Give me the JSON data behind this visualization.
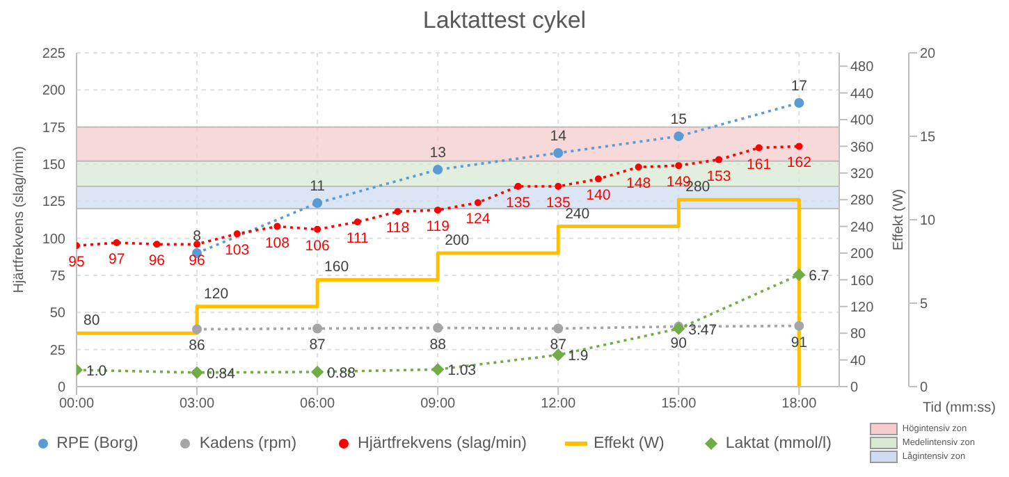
{
  "chart_data": {
    "type": "line",
    "title": "Laktattest cykel",
    "ylabel": "Hjärtfrekvens (slag/min)",
    "y2label": "Effekt (W)",
    "xlabel": "Tid (mm:ss)",
    "xlim": [
      0,
      19
    ],
    "xticks": [
      {
        "value": 0,
        "label": "00:00"
      },
      {
        "value": 3,
        "label": "03:00"
      },
      {
        "value": 6,
        "label": "06:00"
      },
      {
        "value": 9,
        "label": "09:00"
      },
      {
        "value": 12,
        "label": "12:00"
      },
      {
        "value": 15,
        "label": "15:00"
      },
      {
        "value": 18,
        "label": "18:00"
      }
    ],
    "ylim": [
      0,
      225
    ],
    "yticks": [
      0,
      25,
      50,
      75,
      100,
      125,
      150,
      175,
      200,
      225
    ],
    "y2lim": [
      0,
      500
    ],
    "y2ticks": [
      0,
      40,
      80,
      120,
      160,
      200,
      240,
      280,
      320,
      360,
      400,
      440,
      480
    ],
    "y3lim": [
      0,
      20
    ],
    "y3ticks": [
      0,
      5,
      10,
      15,
      20
    ],
    "grid": true,
    "legend": "bottom",
    "data_labels": true,
    "bands": [
      {
        "axis": "y",
        "from": 152,
        "to": 175,
        "label": "Högintensiv zon",
        "color": "#f4cccc"
      },
      {
        "axis": "y",
        "from": 135,
        "to": 152,
        "label": "Medelintensiv zon",
        "color": "#d9ead3"
      },
      {
        "axis": "y",
        "from": 120,
        "to": 135,
        "label": "Lågintensiv zon",
        "color": "#cfdcef"
      }
    ],
    "series": [
      {
        "name": "RPE (Borg)",
        "color": "#5b9bd5",
        "axis": "y3",
        "marker": "circle",
        "line_style": "dotted",
        "x": [
          3,
          6,
          9,
          12,
          15,
          18
        ],
        "values": [
          8,
          11,
          13,
          14,
          15,
          17
        ],
        "value_labels": [
          "8",
          "11",
          "13",
          "14",
          "15",
          "17"
        ]
      },
      {
        "name": "Kadens (rpm)",
        "color": "#a5a5a5",
        "axis": "y2",
        "marker": "circle",
        "line_style": "dotted",
        "x": [
          3,
          6,
          9,
          12,
          15,
          18
        ],
        "values": [
          86,
          87,
          88,
          87,
          90,
          91
        ],
        "value_labels": [
          "86",
          "87",
          "88",
          "87",
          "90",
          "91"
        ]
      },
      {
        "name": "Hjärtfrekvens (slag/min)",
        "color": "#ff0000",
        "marker": "circle",
        "line_style": "dotted",
        "x": [
          0,
          1,
          2,
          3,
          4,
          5,
          6,
          7,
          8,
          9,
          10,
          11,
          12,
          13,
          14,
          15,
          16,
          17,
          18
        ],
        "values": [
          95,
          97,
          96,
          96,
          103,
          108,
          106,
          111,
          118,
          119,
          124,
          135,
          135,
          140,
          148,
          149,
          153,
          161,
          162
        ]
      },
      {
        "name": "Effekt (W)",
        "type": "step",
        "color": "#ffc000",
        "axis": "y2",
        "marker": "none",
        "line_style": "solid",
        "x": [
          0,
          3,
          6,
          9,
          12,
          15,
          18,
          18
        ],
        "values": [
          80,
          120,
          160,
          200,
          240,
          280,
          280,
          0
        ],
        "value_labels": [
          "80",
          "120",
          "160",
          "200",
          "240",
          "280",
          null,
          null
        ]
      },
      {
        "name": "Laktat (mmol/l)",
        "color": "#70ad47",
        "axis": "y3",
        "marker": "diamond",
        "line_style": "dotted",
        "x": [
          0,
          3,
          6,
          9,
          12,
          15,
          18
        ],
        "values": [
          1.0,
          0.84,
          0.88,
          1.03,
          1.9,
          3.47,
          6.7
        ],
        "value_labels": [
          "1.0",
          "0.84",
          "0.88",
          "1.03",
          "1.9",
          "3.47",
          "6.7"
        ]
      }
    ]
  }
}
